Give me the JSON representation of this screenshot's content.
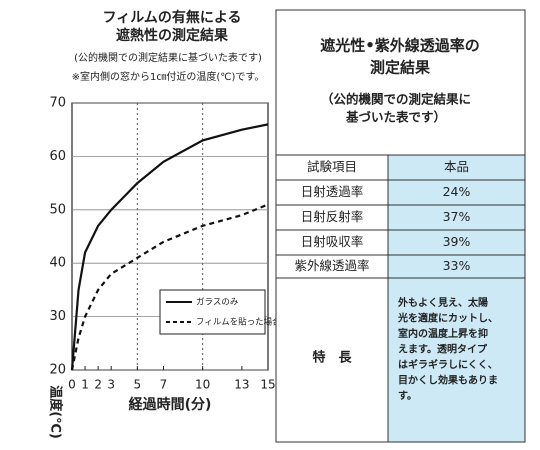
{
  "chart_data": {
    "type": "line",
    "title": [
      "フィルムの有無による",
      "遮熱性の測定結果"
    ],
    "subtitle": "(公的機関での測定結果に基づいた表です)",
    "note": "※室内側の窓から1㎝付近の温度(℃)です。",
    "y_label": "温度(℃)",
    "x_label": "経過時間(分)",
    "x": [
      0,
      0.5,
      1,
      2,
      3,
      5,
      7,
      10,
      13,
      15
    ],
    "series": [
      {
        "name": "ガラスのみ",
        "color": "#111111",
        "dash": "solid",
        "values": [
          20,
          35,
          42,
          47,
          50,
          55,
          59,
          63,
          65,
          66
        ]
      },
      {
        "name": "フィルムを貼った場合",
        "color": "#111111",
        "dash": "dashed",
        "values": [
          20,
          26,
          30,
          35,
          38,
          41,
          44,
          47,
          49,
          51
        ]
      }
    ],
    "xlim": [
      0,
      15
    ],
    "xticks": [
      0,
      1,
      2,
      3,
      5,
      7,
      10,
      13,
      15
    ],
    "ylim": [
      20,
      70
    ],
    "yticks": [
      20,
      30,
      40,
      50,
      60,
      70
    ],
    "grid_y": true,
    "grid_x_dotted": [
      5,
      10
    ],
    "legend": "lower right"
  },
  "table": {
    "title": [
      "遮光性•紫外線透過率の",
      "測定結果"
    ],
    "subtitle": [
      "（公的機関での測定結果に",
      "基づいた表です）"
    ],
    "header": [
      "試験項目",
      "本品"
    ],
    "rows": [
      [
        "日射透過率",
        "24%"
      ],
      [
        "日射反射率",
        "37%"
      ],
      [
        "日射吸収率",
        "39%"
      ],
      [
        "紫外線透過率",
        "33%"
      ]
    ],
    "feature_label": "特　長",
    "feature_text": [
      "外もよく見え、太陽",
      "光を適度にカットし、",
      "室内の温度上昇を抑",
      "えます。透明タイプ",
      "はギラギラしにくく、",
      "目かくし効果もありま",
      "す。"
    ]
  }
}
